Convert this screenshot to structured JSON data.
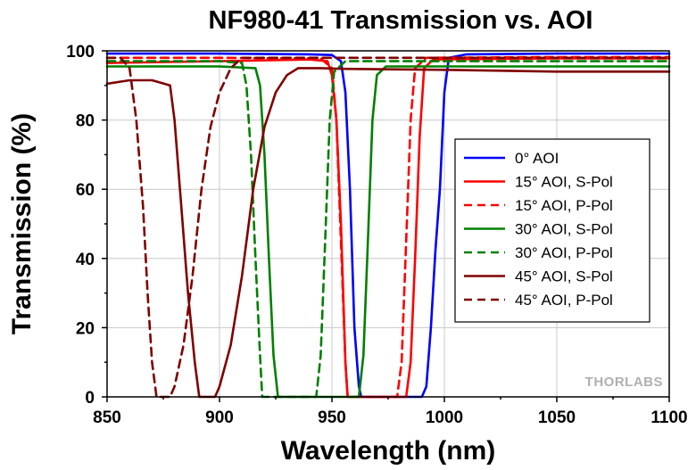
{
  "chart_data": {
    "type": "line",
    "title": "NF980-41 Transmission vs. AOI",
    "xlabel": "Wavelength (nm)",
    "ylabel": "Transmission (%)",
    "xlim": [
      850,
      1100
    ],
    "ylim": [
      0,
      100
    ],
    "xticks": [
      850,
      900,
      950,
      1000,
      1050,
      1100
    ],
    "yticks": [
      0,
      20,
      40,
      60,
      80,
      100
    ],
    "grid": true,
    "legend_position": "right",
    "watermark": "THORLABS",
    "series": [
      {
        "name": "0° AOI",
        "color": "#0000ff",
        "dash": false,
        "points": [
          [
            850,
            99.2
          ],
          [
            900,
            99.2
          ],
          [
            940,
            99
          ],
          [
            950,
            98.8
          ],
          [
            954,
            97
          ],
          [
            956,
            88
          ],
          [
            958,
            60
          ],
          [
            960,
            20
          ],
          [
            962,
            3
          ],
          [
            963,
            0
          ],
          [
            990,
            0
          ],
          [
            992,
            3
          ],
          [
            994,
            20
          ],
          [
            996,
            42
          ],
          [
            998,
            60
          ],
          [
            1000,
            88
          ],
          [
            1002,
            98
          ],
          [
            1010,
            99
          ],
          [
            1050,
            99.2
          ],
          [
            1100,
            99.2
          ]
        ]
      },
      {
        "name": "15° AOI, S-Pol",
        "color": "#ff0000",
        "dash": false,
        "points": [
          [
            850,
            96.5
          ],
          [
            900,
            97
          ],
          [
            940,
            97.5
          ],
          [
            948,
            97
          ],
          [
            950,
            93
          ],
          [
            952,
            80
          ],
          [
            954,
            50
          ],
          [
            956,
            10
          ],
          [
            957,
            0
          ],
          [
            983,
            0
          ],
          [
            985,
            10
          ],
          [
            987,
            40
          ],
          [
            989,
            75
          ],
          [
            991,
            95
          ],
          [
            995,
            97.5
          ],
          [
            1050,
            97.8
          ],
          [
            1100,
            97.8
          ]
        ]
      },
      {
        "name": "15° AOI, P-Pol",
        "color": "#ff0000",
        "dash": true,
        "points": [
          [
            850,
            98
          ],
          [
            900,
            98
          ],
          [
            945,
            97.8
          ],
          [
            950,
            95
          ],
          [
            952,
            80
          ],
          [
            954,
            45
          ],
          [
            956,
            10
          ],
          [
            957,
            0
          ],
          [
            979,
            0
          ],
          [
            981,
            10
          ],
          [
            983,
            45
          ],
          [
            985,
            80
          ],
          [
            987,
            95
          ],
          [
            992,
            98
          ],
          [
            1050,
            98.2
          ],
          [
            1100,
            98.2
          ]
        ]
      },
      {
        "name": "30° AOI, S-Pol",
        "color": "#008000",
        "dash": false,
        "points": [
          [
            850,
            95.5
          ],
          [
            900,
            95.5
          ],
          [
            916,
            95
          ],
          [
            918,
            90
          ],
          [
            920,
            70
          ],
          [
            922,
            40
          ],
          [
            924,
            12
          ],
          [
            926,
            0
          ],
          [
            962,
            0
          ],
          [
            964,
            12
          ],
          [
            966,
            45
          ],
          [
            968,
            80
          ],
          [
            970,
            93
          ],
          [
            974,
            95.5
          ],
          [
            1050,
            95.5
          ],
          [
            1100,
            95.5
          ]
        ]
      },
      {
        "name": "30° AOI, P-Pol",
        "color": "#008000",
        "dash": true,
        "points": [
          [
            850,
            97
          ],
          [
            900,
            97
          ],
          [
            910,
            96.5
          ],
          [
            912,
            90
          ],
          [
            914,
            70
          ],
          [
            916,
            40
          ],
          [
            918,
            12
          ],
          [
            919,
            0
          ],
          [
            943,
            0
          ],
          [
            945,
            12
          ],
          [
            947,
            45
          ],
          [
            949,
            80
          ],
          [
            951,
            94
          ],
          [
            956,
            97
          ],
          [
            1050,
            97
          ],
          [
            1100,
            97
          ]
        ]
      },
      {
        "name": "45° AOI, S-Pol",
        "color": "#800000",
        "dash": false,
        "points": [
          [
            850,
            90.5
          ],
          [
            860,
            91.5
          ],
          [
            870,
            91.5
          ],
          [
            878,
            90
          ],
          [
            880,
            80
          ],
          [
            883,
            55
          ],
          [
            886,
            30
          ],
          [
            889,
            10
          ],
          [
            891,
            0
          ],
          [
            898,
            0
          ],
          [
            900,
            3
          ],
          [
            905,
            15
          ],
          [
            910,
            35
          ],
          [
            915,
            60
          ],
          [
            920,
            78
          ],
          [
            925,
            88
          ],
          [
            930,
            93
          ],
          [
            935,
            95
          ],
          [
            945,
            95
          ],
          [
            955,
            94.8
          ],
          [
            1000,
            94.5
          ],
          [
            1050,
            94
          ],
          [
            1100,
            94
          ]
        ]
      },
      {
        "name": "45° AOI, P-Pol",
        "color": "#800000",
        "dash": true,
        "points": [
          [
            850,
            98
          ],
          [
            856,
            98
          ],
          [
            860,
            95
          ],
          [
            863,
            80
          ],
          [
            866,
            55
          ],
          [
            868,
            30
          ],
          [
            870,
            10
          ],
          [
            872,
            0
          ],
          [
            878,
            0
          ],
          [
            880,
            3
          ],
          [
            884,
            15
          ],
          [
            888,
            35
          ],
          [
            892,
            60
          ],
          [
            896,
            78
          ],
          [
            900,
            88
          ],
          [
            905,
            95
          ],
          [
            910,
            98
          ],
          [
            1050,
            98
          ],
          [
            1100,
            98
          ]
        ]
      }
    ]
  }
}
